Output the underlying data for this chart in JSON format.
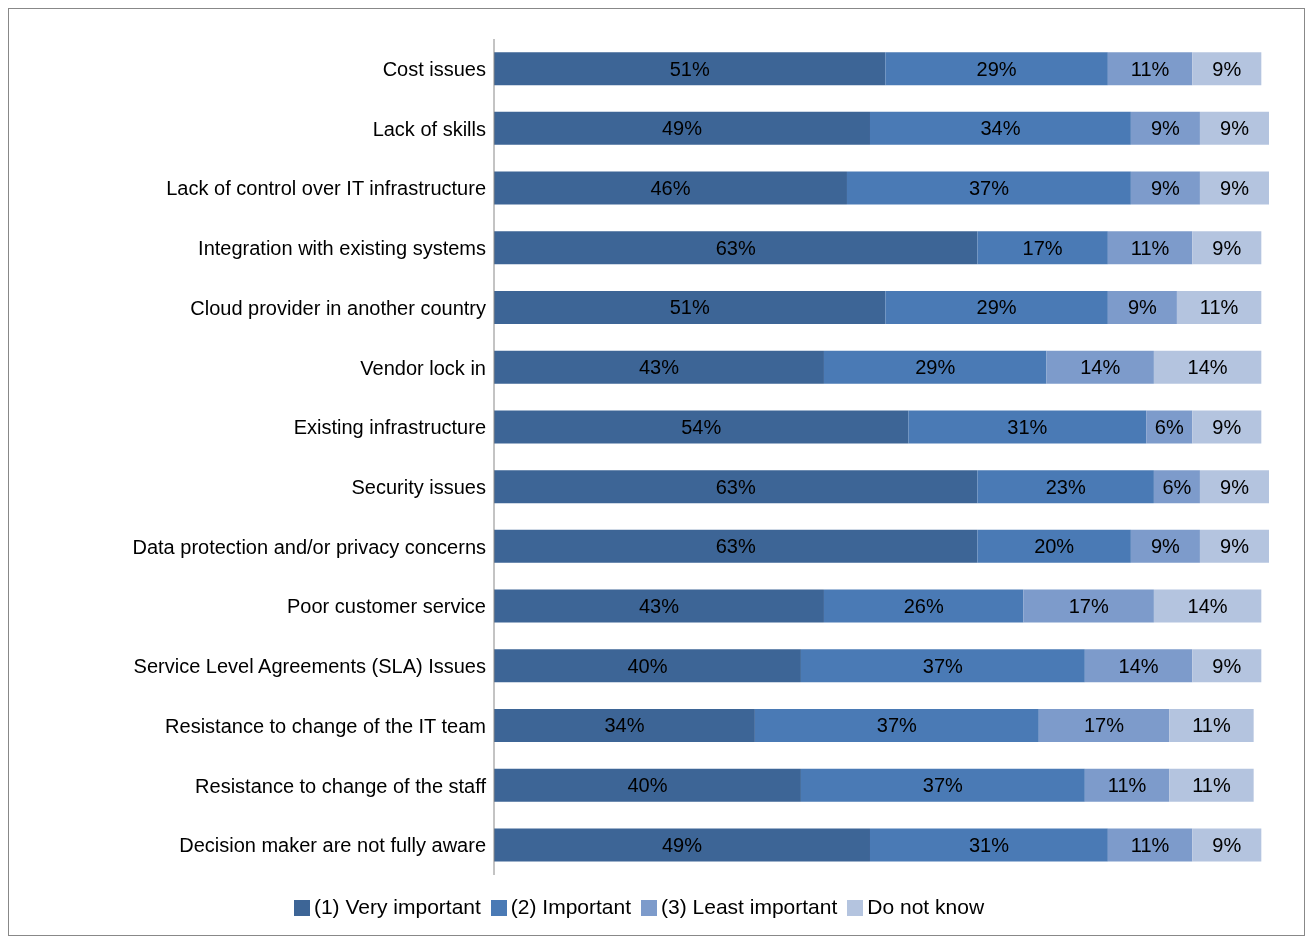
{
  "chart_data": {
    "type": "bar",
    "orientation": "horizontal",
    "stacked": true,
    "xlim": [
      0,
      101
    ],
    "tick_labels": "y",
    "legend": "bottom",
    "grid": false,
    "categories": [
      "Cost issues",
      "Lack of skills",
      "Lack of control over IT infrastructure",
      "Integration with existing systems",
      "Cloud provider in another country",
      "Vendor lock in",
      "Existing infrastructure",
      "Security issues",
      "Data protection and/or privacy concerns",
      "Poor customer service",
      "Service Level Agreements (SLA) Issues",
      "Resistance to change of the IT team",
      "Resistance to change of the  staff",
      "Decision maker are not fully aware"
    ],
    "series": [
      {
        "name": "(1) Very important",
        "color": "#3d6596",
        "values": [
          51,
          49,
          46,
          63,
          51,
          43,
          54,
          63,
          63,
          43,
          40,
          34,
          40,
          49
        ],
        "value_labels": [
          "51%",
          "49%",
          "46%",
          "63%",
          "51%",
          "43%",
          "54%",
          "63%",
          "63%",
          "43%",
          "40%",
          "34%",
          "40%",
          "49%"
        ]
      },
      {
        "name": "(2) Important",
        "color": "#4a7ab5",
        "values": [
          29,
          34,
          37,
          17,
          29,
          29,
          31,
          23,
          20,
          26,
          37,
          37,
          37,
          31
        ],
        "value_labels": [
          "29%",
          "34%",
          "37%",
          "17%",
          "29%",
          "29%",
          "31%",
          "23%",
          "20%",
          "26%",
          "37%",
          "37%",
          "37%",
          "31%"
        ]
      },
      {
        "name": "(3) Least important",
        "color": "#7d9bcb",
        "values": [
          11,
          9,
          9,
          11,
          9,
          14,
          6,
          6,
          9,
          17,
          14,
          17,
          11,
          11
        ],
        "value_labels": [
          "11%",
          "9%",
          "9%",
          "11%",
          "9%",
          "14%",
          "6%",
          "6%",
          "9%",
          "17%",
          "14%",
          "17%",
          "11%",
          "11%"
        ]
      },
      {
        "name": "Do not know",
        "color": "#b4c4df",
        "values": [
          9,
          9,
          9,
          9,
          11,
          14,
          9,
          9,
          9,
          14,
          9,
          11,
          11,
          9
        ],
        "value_labels": [
          "9%",
          "9%",
          "9%",
          "9%",
          "11%",
          "14%",
          "9%",
          "9%",
          "9%",
          "14%",
          "9%",
          "11%",
          "11%",
          "9%"
        ]
      }
    ]
  }
}
